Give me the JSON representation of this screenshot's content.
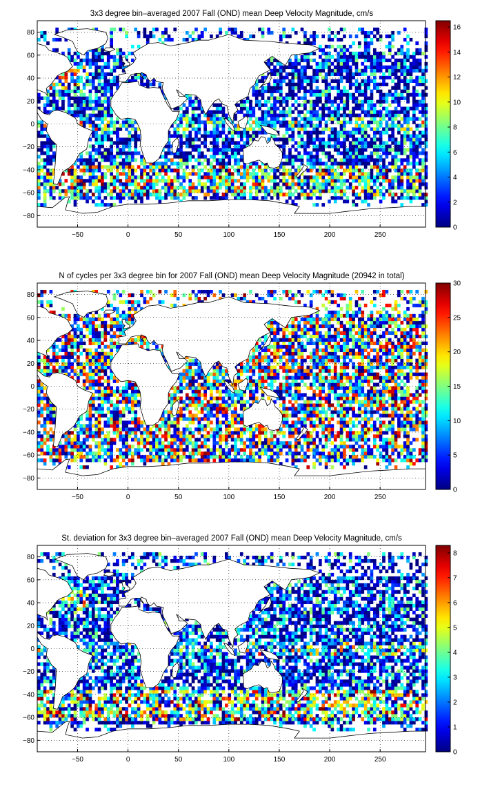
{
  "chart_data": [
    {
      "type": "heatmap",
      "title": "3x3 degree bin–averaged 2007 Fall (OND) mean Deep Velocity Magnitude, cm/s",
      "xlabel": "",
      "ylabel": "",
      "xlim": [
        -90,
        295
      ],
      "ylim": [
        -90,
        90
      ],
      "x_ticks": [
        -50,
        0,
        50,
        100,
        150,
        200,
        250
      ],
      "y_ticks": [
        80,
        60,
        40,
        20,
        0,
        -20,
        -40,
        -60,
        -80
      ],
      "grid": true,
      "bin_size_deg": 3,
      "colorbar": {
        "min": 0,
        "max": 16.5,
        "ticks": [
          0,
          2,
          4,
          6,
          8,
          10,
          12,
          14,
          16
        ],
        "colormap": "jet"
      }
    },
    {
      "type": "heatmap",
      "title": "N of cycles per 3x3 degree bin for 2007 Fall (OND) mean Deep Velocity Magnitude (20942 in total)",
      "xlabel": "",
      "ylabel": "",
      "xlim": [
        -90,
        295
      ],
      "ylim": [
        -90,
        90
      ],
      "x_ticks": [
        -50,
        0,
        50,
        100,
        150,
        200,
        250
      ],
      "y_ticks": [
        80,
        60,
        40,
        20,
        0,
        -20,
        -40,
        -60,
        -80
      ],
      "grid": true,
      "bin_size_deg": 3,
      "colorbar": {
        "min": 0,
        "max": 30,
        "ticks": [
          0,
          5,
          10,
          15,
          20,
          25,
          30
        ],
        "colormap": "jet"
      }
    },
    {
      "type": "heatmap",
      "title": "St. deviation for 3x3 degree bin–averaged 2007 Fall (OND) mean Deep Velocity Magnitude, cm/s",
      "xlabel": "",
      "ylabel": "",
      "xlim": [
        -90,
        295
      ],
      "ylim": [
        -90,
        90
      ],
      "x_ticks": [
        -50,
        0,
        50,
        100,
        150,
        200,
        250
      ],
      "y_ticks": [
        80,
        60,
        40,
        20,
        0,
        -20,
        -40,
        -60,
        -80
      ],
      "grid": true,
      "bin_size_deg": 3,
      "colorbar": {
        "min": 0,
        "max": 8.3,
        "ticks": [
          0,
          1,
          2,
          3,
          4,
          5,
          6,
          7,
          8
        ],
        "colormap": "jet"
      }
    }
  ]
}
